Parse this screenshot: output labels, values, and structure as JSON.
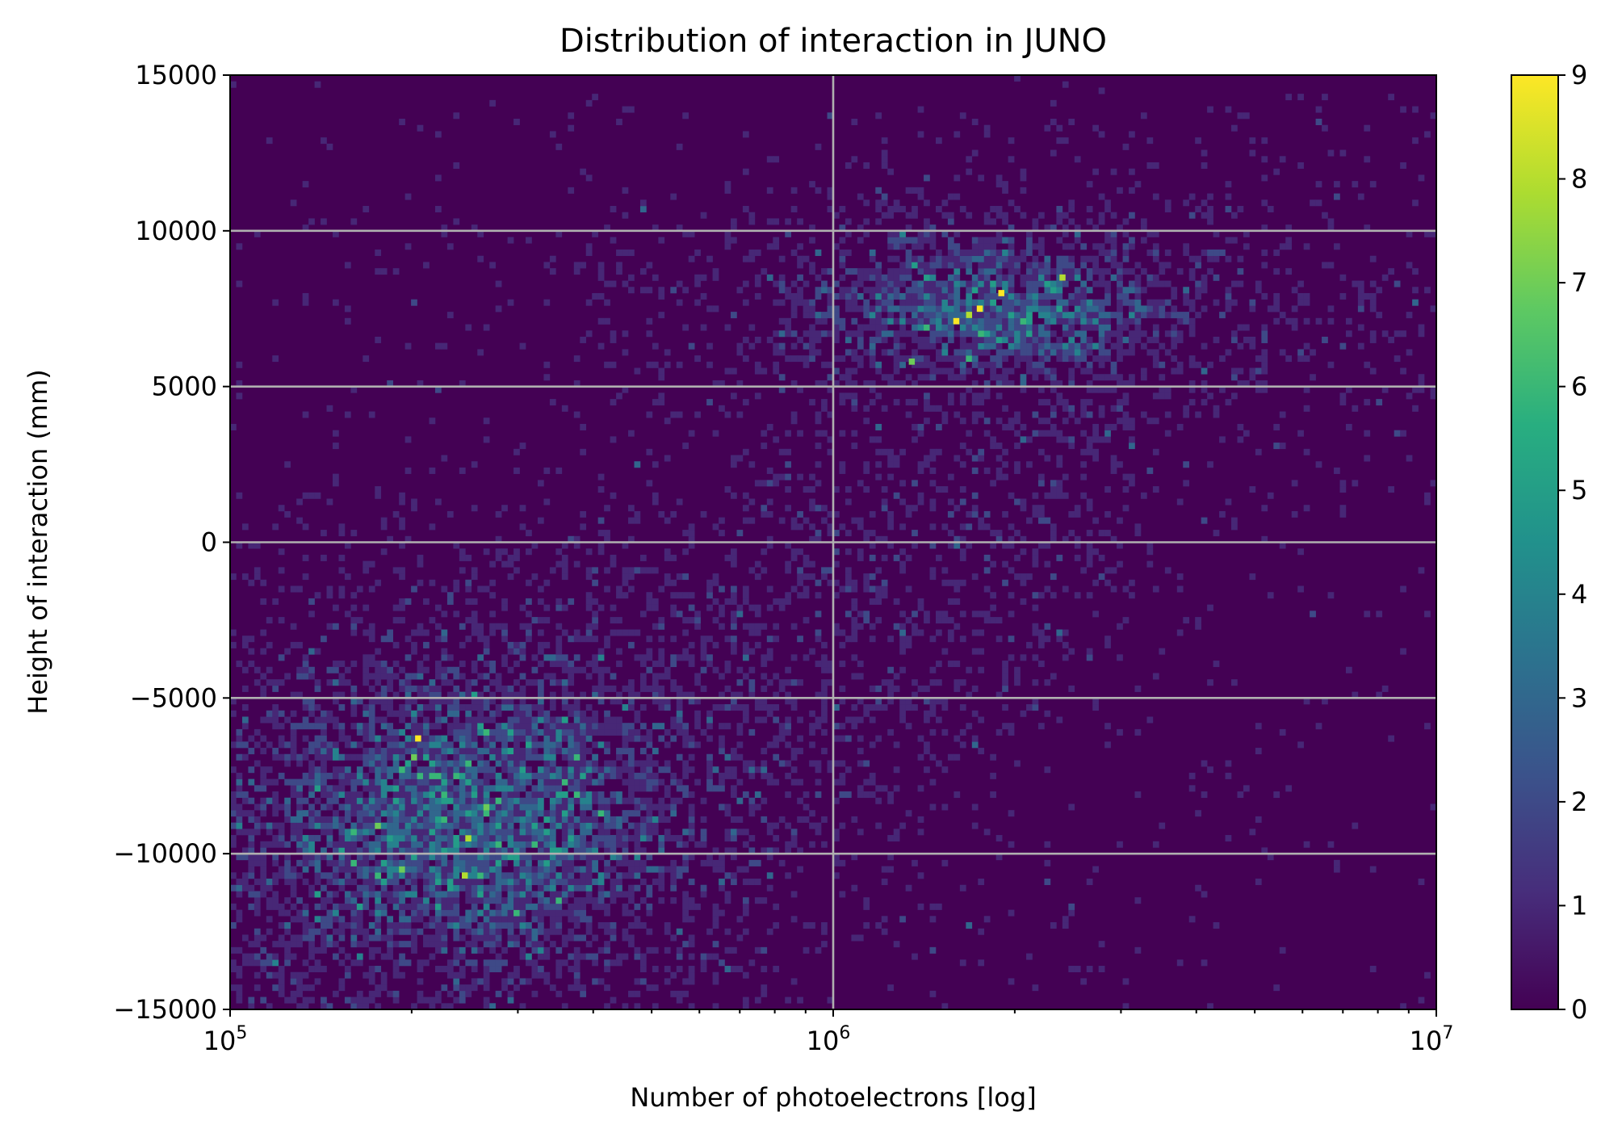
{
  "chart_data": {
    "type": "heatmap",
    "title": "Distribution of interaction in JUNO",
    "xlabel": "Number of photoelectrons [log]",
    "ylabel": "Height of interaction (mm)",
    "x_scale": "log",
    "xlim": [
      100000,
      10000000
    ],
    "ylim": [
      -15000,
      15000
    ],
    "x_ticks": [
      {
        "value": 100000,
        "base": "10",
        "exp": "5"
      },
      {
        "value": 1000000,
        "base": "10",
        "exp": "6"
      },
      {
        "value": 10000000,
        "base": "10",
        "exp": "7"
      }
    ],
    "y_ticks": [
      {
        "value": -15000,
        "label": "−15000"
      },
      {
        "value": -10000,
        "label": "−10000"
      },
      {
        "value": -5000,
        "label": "−5000"
      },
      {
        "value": 0,
        "label": "0"
      },
      {
        "value": 5000,
        "label": "5000"
      },
      {
        "value": 10000,
        "label": "10000"
      },
      {
        "value": 15000,
        "label": "15000"
      }
    ],
    "grid": true,
    "colormap": "viridis",
    "colorbar": {
      "min": 0,
      "max": 9,
      "ticks": [
        "0",
        "1",
        "2",
        "3",
        "4",
        "5",
        "6",
        "7",
        "8",
        "9"
      ]
    },
    "background_color": "#440154",
    "clusters": [
      {
        "name": "lower",
        "center_x": 250000,
        "center_y": -9000,
        "sigma_log10_x": 0.18,
        "sigma_y": 2500,
        "peak_count": 9
      },
      {
        "name": "upper",
        "center_x": 1800000,
        "center_y": 7500,
        "sigma_log10_x": 0.16,
        "sigma_y": 1200,
        "peak_count": 9
      }
    ],
    "bright_bins": [
      {
        "x": 205000,
        "y": -6300,
        "count": 9
      },
      {
        "x": 245000,
        "y": -10700,
        "count": 8
      },
      {
        "x": 1600000,
        "y": 7100,
        "count": 9
      },
      {
        "x": 1750000,
        "y": 7500,
        "count": 9
      },
      {
        "x": 1900000,
        "y": 8000,
        "count": 9
      },
      {
        "x": 1680000,
        "y": 7300,
        "count": 8
      },
      {
        "x": 2400000,
        "y": 8500,
        "count": 8
      },
      {
        "x": 1350000,
        "y": 5800,
        "count": 7
      }
    ]
  }
}
